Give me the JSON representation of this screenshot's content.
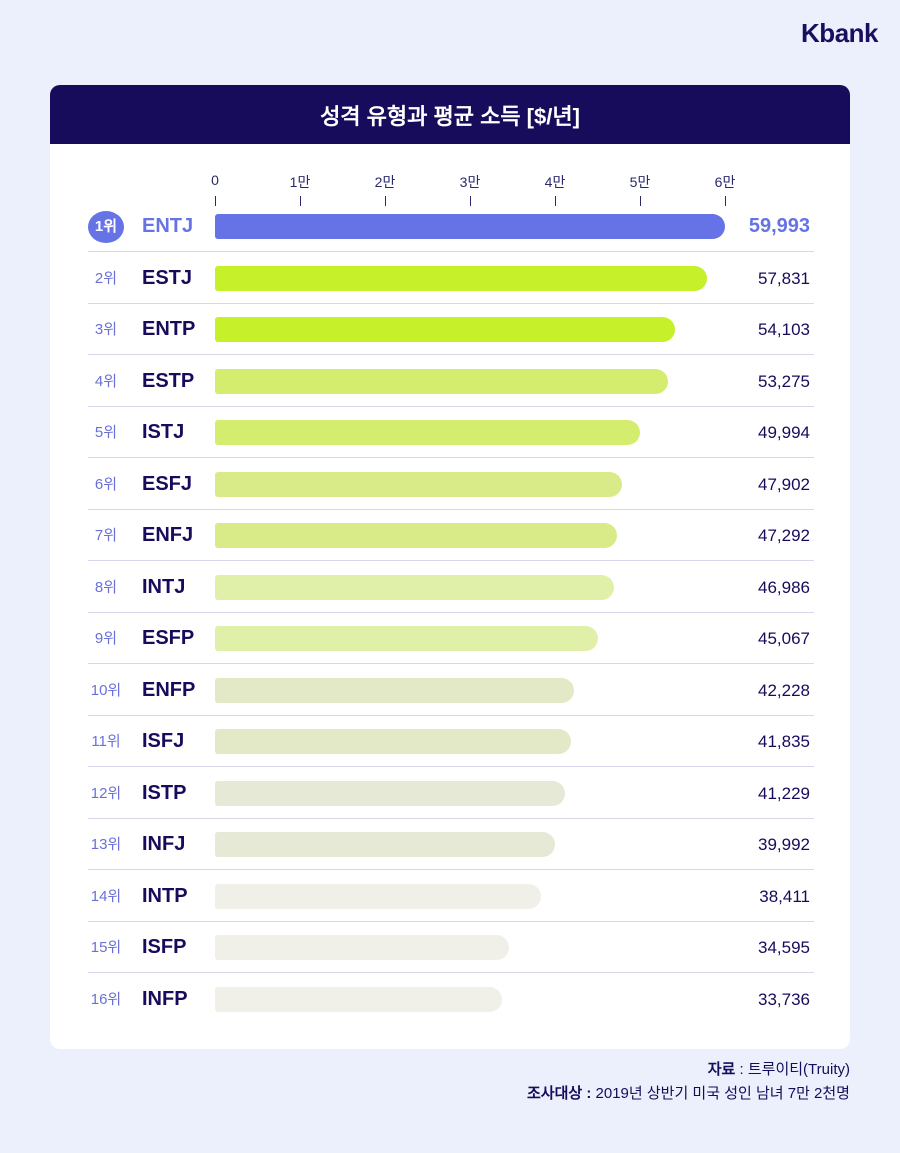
{
  "logo": "Kbank",
  "chart_data": {
    "type": "bar",
    "title": "성격 유형과 평균 소득 [$/년]",
    "xlim": [
      0,
      60000
    ],
    "ticks": [
      {
        "v": 0,
        "label": "0"
      },
      {
        "v": 10000,
        "label": "1만"
      },
      {
        "v": 20000,
        "label": "2만"
      },
      {
        "v": 30000,
        "label": "3만"
      },
      {
        "v": 40000,
        "label": "4만"
      },
      {
        "v": 50000,
        "label": "5만"
      },
      {
        "v": 60000,
        "label": "6만"
      }
    ],
    "rows": [
      {
        "rank": "1위",
        "type": "ENTJ",
        "value": 59993,
        "label": "59,993",
        "color": "#6673e6"
      },
      {
        "rank": "2위",
        "type": "ESTJ",
        "value": 57831,
        "label": "57,831",
        "color": "#c6f02a"
      },
      {
        "rank": "3위",
        "type": "ENTP",
        "value": 54103,
        "label": "54,103",
        "color": "#c6f02a"
      },
      {
        "rank": "4위",
        "type": "ESTP",
        "value": 53275,
        "label": "53,275",
        "color": "#d4ed6e"
      },
      {
        "rank": "5위",
        "type": "ISTJ",
        "value": 49994,
        "label": "49,994",
        "color": "#d4ed6e"
      },
      {
        "rank": "6위",
        "type": "ESFJ",
        "value": 47902,
        "label": "47,902",
        "color": "#d8eb88"
      },
      {
        "rank": "7위",
        "type": "ENFJ",
        "value": 47292,
        "label": "47,292",
        "color": "#d8eb88"
      },
      {
        "rank": "8위",
        "type": "INTJ",
        "value": 46986,
        "label": "46,986",
        "color": "#e1f0a8"
      },
      {
        "rank": "9위",
        "type": "ESFP",
        "value": 45067,
        "label": "45,067",
        "color": "#e1f0a8"
      },
      {
        "rank": "10위",
        "type": "ENFP",
        "value": 42228,
        "label": "42,228",
        "color": "#e3e9c6"
      },
      {
        "rank": "11위",
        "type": "ISFJ",
        "value": 41835,
        "label": "41,835",
        "color": "#e3e9c6"
      },
      {
        "rank": "12위",
        "type": "ISTP",
        "value": 41229,
        "label": "41,229",
        "color": "#e6e9d6"
      },
      {
        "rank": "13위",
        "type": "INFJ",
        "value": 39992,
        "label": "39,992",
        "color": "#e6e9d6"
      },
      {
        "rank": "14위",
        "type": "INTP",
        "value": 38411,
        "label": "38,411",
        "color": "#f0f0e9"
      },
      {
        "rank": "15위",
        "type": "ISFP",
        "value": 34595,
        "label": "34,595",
        "color": "#f0f0e9"
      },
      {
        "rank": "16위",
        "type": "INFP",
        "value": 33736,
        "label": "33,736",
        "color": "#f0f0e9"
      }
    ]
  },
  "notes": {
    "source_label": "자료",
    "source_value": " : 트루이티(Truity)",
    "survey_label": "조사대상 :",
    "survey_value": " 2019년 상반기 미국 성인 남녀 7만 2천명"
  }
}
